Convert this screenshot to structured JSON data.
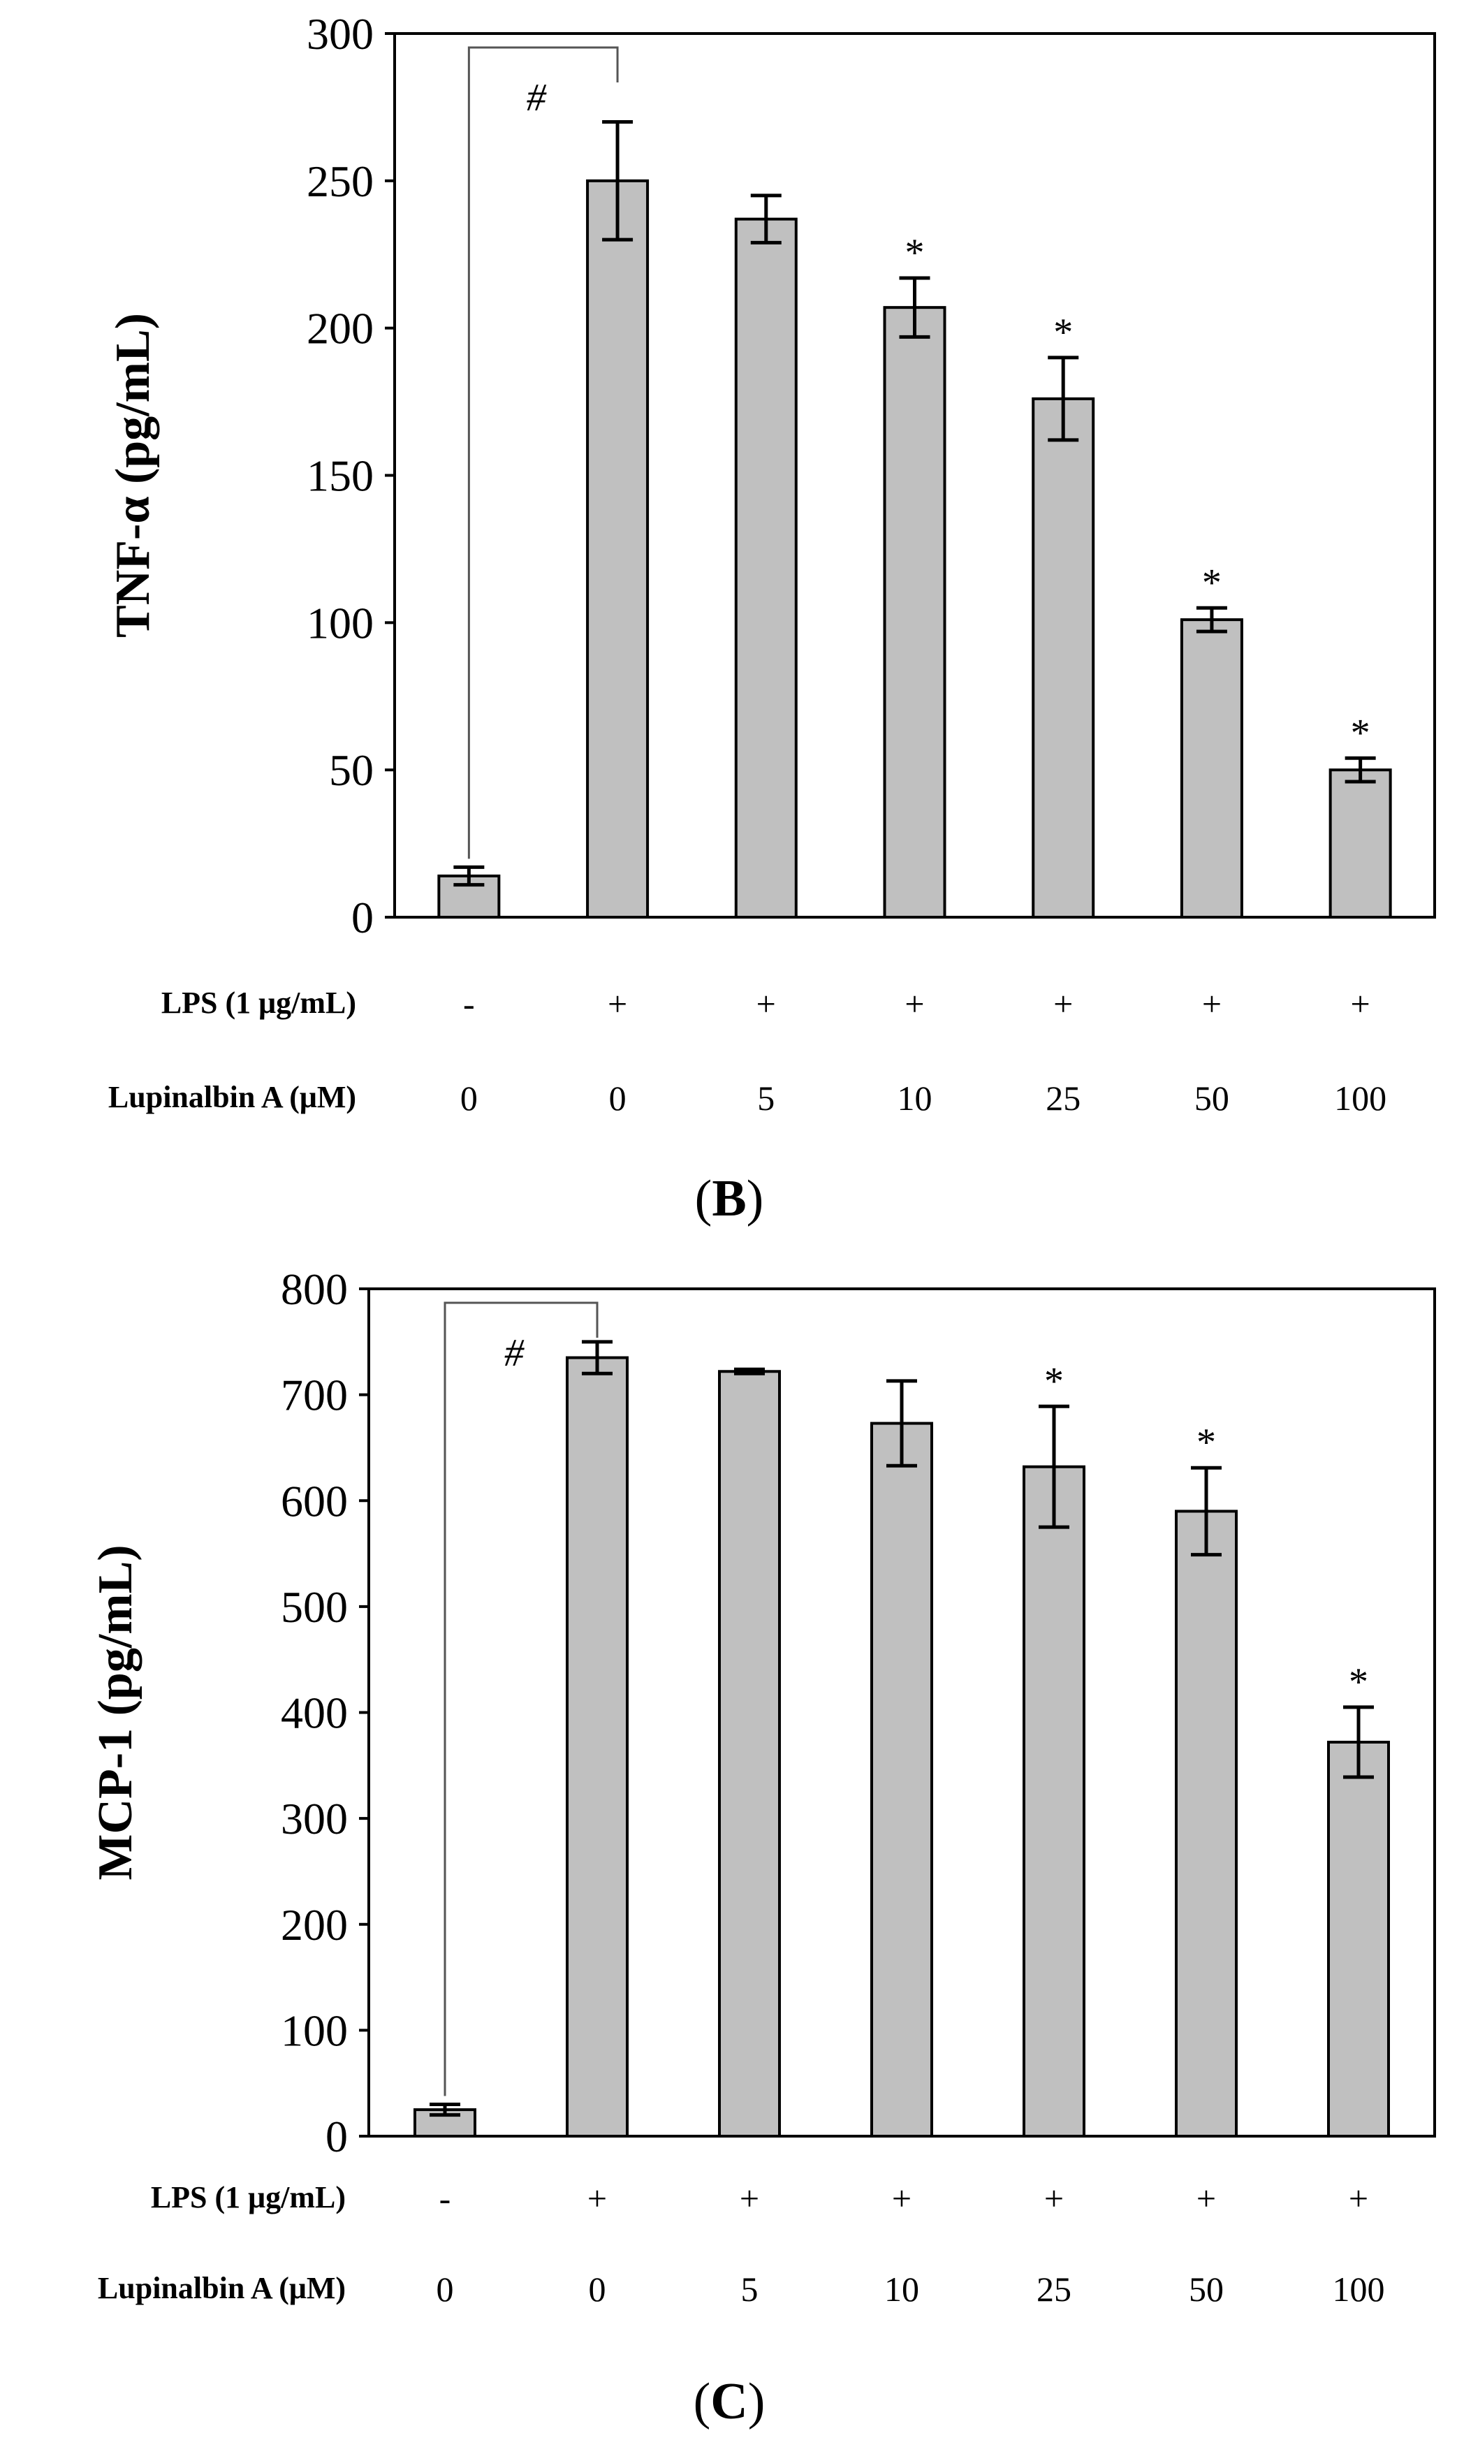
{
  "chart_data": [
    {
      "type": "bar",
      "panel_label": "B",
      "ylabel": "TNF-α (pg/mL)",
      "ylim": [
        0,
        300
      ],
      "yticks": [
        0,
        50,
        100,
        150,
        200,
        250,
        300
      ],
      "values": [
        14,
        250,
        237,
        207,
        176,
        101,
        50
      ],
      "errors": [
        3,
        20,
        8,
        10,
        14,
        4,
        4
      ],
      "significance": [
        "",
        "",
        "",
        "*",
        "*",
        "*",
        "*"
      ],
      "bracket_symbol": "#",
      "bracket_between": [
        0,
        1
      ],
      "rows": [
        {
          "label": "LPS (1 μg/mL)",
          "values": [
            "-",
            "+",
            "+",
            "+",
            "+",
            "+",
            "+"
          ]
        },
        {
          "label": "Lupinalbin A (μM)",
          "values": [
            "0",
            "0",
            "5",
            "10",
            "25",
            "50",
            "100"
          ]
        }
      ],
      "bar_color": "#c0c0c0"
    },
    {
      "type": "bar",
      "panel_label": "C",
      "ylabel": "MCP-1 (pg/mL)",
      "ylim": [
        0,
        800
      ],
      "yticks": [
        0,
        100,
        200,
        300,
        400,
        500,
        600,
        700,
        800
      ],
      "values": [
        25,
        735,
        722,
        673,
        632,
        590,
        372
      ],
      "errors": [
        5,
        15,
        2,
        40,
        57,
        41,
        33
      ],
      "significance": [
        "",
        "",
        "",
        "",
        "*",
        "*",
        "*"
      ],
      "bracket_symbol": "#",
      "bracket_between": [
        0,
        1
      ],
      "rows": [
        {
          "label": "LPS (1 μg/mL)",
          "values": [
            "-",
            "+",
            "+",
            "+",
            "+",
            "+",
            "+"
          ]
        },
        {
          "label": "Lupinalbin A (μM)",
          "values": [
            "0",
            "0",
            "5",
            "10",
            "25",
            "50",
            "100"
          ]
        }
      ],
      "bar_color": "#c0c0c0"
    }
  ]
}
